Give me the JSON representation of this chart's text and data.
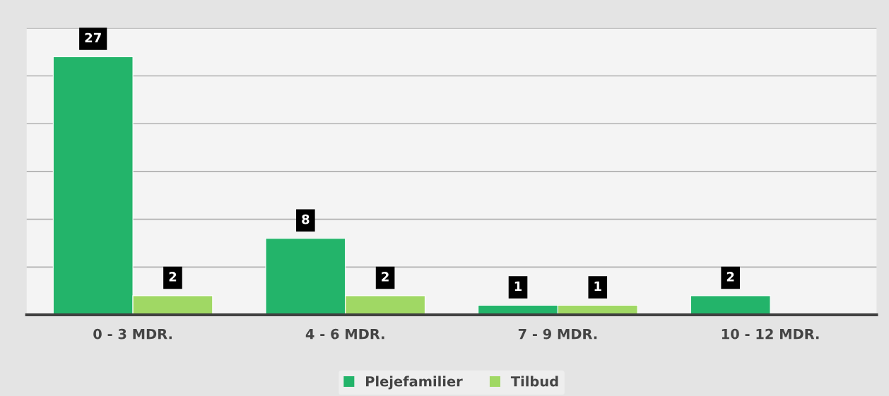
{
  "chart_data": {
    "type": "bar",
    "categories": [
      "0 - 3 MDR.",
      "4 - 6 MDR.",
      "7 - 9 MDR.",
      "10 - 12 MDR."
    ],
    "series": [
      {
        "name": "Plejefamilier",
        "color": "#23b46a",
        "values": [
          27,
          8,
          1,
          2
        ]
      },
      {
        "name": "Tilbud",
        "color": "#a0d864",
        "values": [
          2,
          2,
          1,
          null
        ]
      }
    ],
    "ylim": [
      0,
      30
    ],
    "yticks": [
      {
        "value": 0,
        "label": null
      },
      {
        "value": 5,
        "label": null
      },
      {
        "value": 10,
        "label": null
      },
      {
        "value": 15,
        "label": null
      },
      {
        "value": 20,
        "label": null
      },
      {
        "value": 25,
        "label": null
      },
      {
        "value": 30,
        "label": null
      }
    ],
    "tick_labels": "x",
    "grid": "y",
    "legend": "bottom",
    "data_labels": true
  }
}
